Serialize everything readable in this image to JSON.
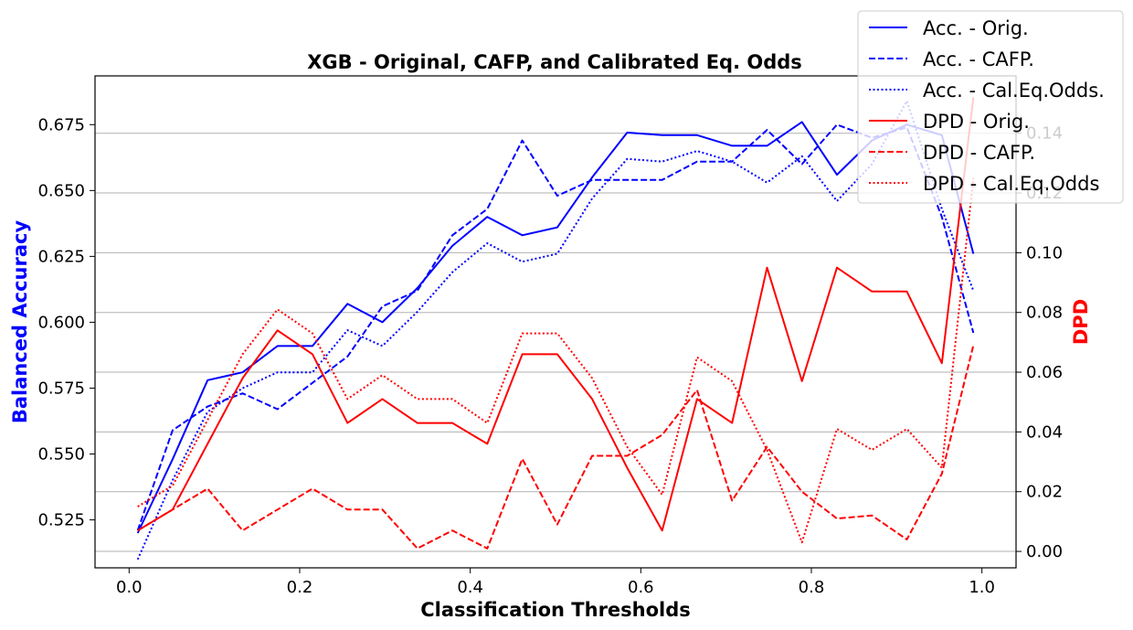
{
  "chart_data": {
    "type": "line",
    "title": "XGB - Original, CAFP, and Calibrated Eq. Odds",
    "xlabel": "Classification Thresholds",
    "ylabel_left": "Balanced Accuracy",
    "ylabel_right": "DPD",
    "xlim": [
      -0.04,
      1.04
    ],
    "ylim_left": [
      0.5068,
      0.6935
    ],
    "ylim_right": [
      -0.0055,
      0.1592
    ],
    "x_ticks": [
      0.0,
      0.2,
      0.4,
      0.6,
      0.8,
      1.0
    ],
    "x_tick_labels": [
      "0.0",
      "0.2",
      "0.4",
      "0.6",
      "0.8",
      "1.0"
    ],
    "left_ticks": [
      0.525,
      0.55,
      0.575,
      0.6,
      0.625,
      0.65,
      0.675
    ],
    "left_tick_labels": [
      "0.525",
      "0.550",
      "0.575",
      "0.600",
      "0.625",
      "0.650",
      "0.675"
    ],
    "right_ticks": [
      0.0,
      0.02,
      0.04,
      0.06,
      0.08,
      0.1,
      0.12,
      0.14
    ],
    "right_tick_labels": [
      "0.00",
      "0.02",
      "0.04",
      "0.06",
      "0.08",
      "0.10",
      "0.12",
      "0.14"
    ],
    "grid": "horizontal lines at right-axis ticks",
    "legend_position": "top-right",
    "colors": {
      "accuracy": "#0000ff",
      "dpd": "#ff0000",
      "grid": "#b0b0b0"
    },
    "x": [
      0.01,
      0.051,
      0.092,
      0.133,
      0.174,
      0.215,
      0.256,
      0.297,
      0.338,
      0.379,
      0.42,
      0.461,
      0.502,
      0.543,
      0.584,
      0.625,
      0.666,
      0.707,
      0.748,
      0.789,
      0.83,
      0.871,
      0.912,
      0.953,
      0.99
    ],
    "series": [
      {
        "name": "Acc. - Orig.",
        "axis": "left",
        "color": "#0000ff",
        "dash": "solid",
        "values": [
          0.52,
          0.548,
          0.578,
          0.581,
          0.591,
          0.591,
          0.607,
          0.6,
          0.613,
          0.629,
          0.64,
          0.633,
          0.636,
          0.655,
          0.672,
          0.671,
          0.671,
          0.667,
          0.667,
          0.676,
          0.656,
          0.669,
          0.675,
          0.671,
          0.626
        ]
      },
      {
        "name": "Acc. - CAFP.",
        "axis": "left",
        "color": "#0000ff",
        "dash": "dashed",
        "values": [
          0.521,
          0.559,
          0.568,
          0.573,
          0.567,
          0.577,
          0.587,
          0.606,
          0.612,
          0.633,
          0.643,
          0.669,
          0.648,
          0.654,
          0.654,
          0.654,
          0.661,
          0.661,
          0.673,
          0.66,
          0.675,
          0.67,
          0.674,
          0.64,
          0.596
        ]
      },
      {
        "name": "Acc. - Cal.Eq.Odds.",
        "axis": "left",
        "color": "#0000ff",
        "dash": "dotted",
        "values": [
          0.51,
          0.54,
          0.566,
          0.575,
          0.581,
          0.581,
          0.597,
          0.591,
          0.604,
          0.619,
          0.63,
          0.623,
          0.626,
          0.647,
          0.662,
          0.661,
          0.665,
          0.661,
          0.653,
          0.663,
          0.646,
          0.66,
          0.684,
          0.643,
          0.612
        ]
      },
      {
        "name": "DPD - Orig.",
        "axis": "right",
        "color": "#ff0000",
        "dash": "solid",
        "values": [
          0.007,
          0.014,
          0.036,
          0.058,
          0.074,
          0.066,
          0.043,
          0.051,
          0.043,
          0.043,
          0.036,
          0.066,
          0.066,
          0.051,
          0.028,
          0.007,
          0.051,
          0.043,
          0.095,
          0.057,
          0.095,
          0.087,
          0.087,
          0.063,
          0.152
        ]
      },
      {
        "name": "DPD - CAFP.",
        "axis": "right",
        "color": "#ff0000",
        "dash": "dashed",
        "values": [
          0.007,
          0.014,
          0.021,
          0.007,
          0.014,
          0.021,
          0.014,
          0.014,
          0.001,
          0.007,
          0.001,
          0.031,
          0.009,
          0.032,
          0.032,
          0.039,
          0.054,
          0.017,
          0.035,
          0.02,
          0.011,
          0.012,
          0.004,
          0.026,
          0.069
        ]
      },
      {
        "name": "DPD - Cal.Eq.Odds",
        "axis": "right",
        "color": "#ff0000",
        "dash": "dotted",
        "values": [
          0.015,
          0.022,
          0.044,
          0.066,
          0.081,
          0.073,
          0.051,
          0.059,
          0.051,
          0.051,
          0.043,
          0.073,
          0.073,
          0.058,
          0.035,
          0.019,
          0.065,
          0.057,
          0.034,
          0.003,
          0.041,
          0.034,
          0.041,
          0.028,
          0.125
        ]
      }
    ]
  }
}
